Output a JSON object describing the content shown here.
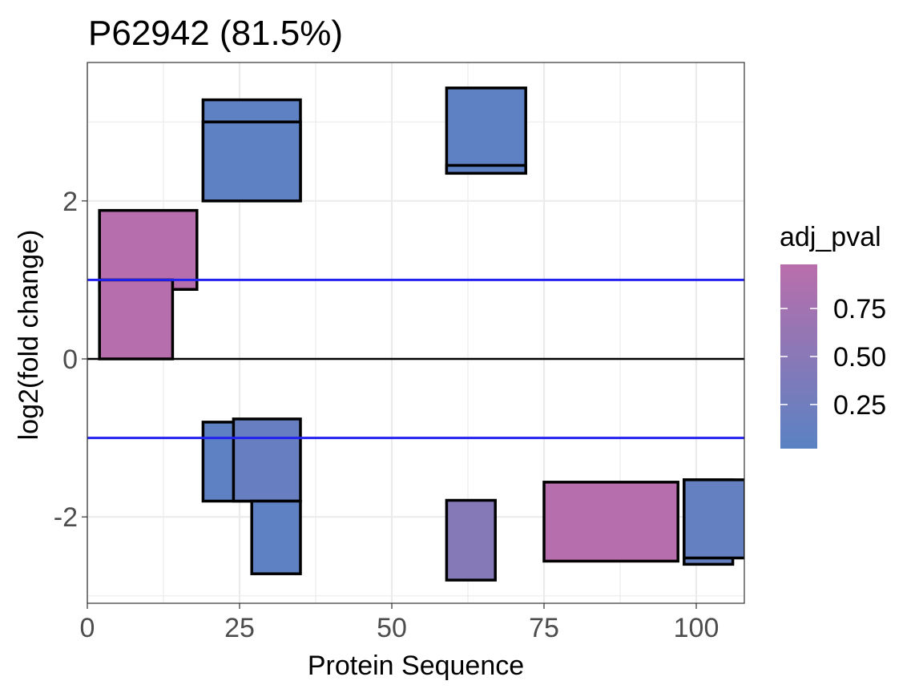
{
  "chart_data": {
    "type": "rect",
    "title": "P62942 (81.5%)",
    "xlabel": "Protein Sequence",
    "ylabel": "log2(fold change)",
    "xlim": [
      0,
      108
    ],
    "ylim": [
      -3.05,
      3.75
    ],
    "x_ticks": [
      0,
      25,
      50,
      75,
      100
    ],
    "x_tick_labels": [
      "0",
      "25",
      "50",
      "75",
      "100"
    ],
    "y_ticks": [
      -2,
      0,
      2
    ],
    "y_tick_labels": [
      "-2",
      "0",
      "2"
    ],
    "grid": true,
    "reference_lines": [
      {
        "y": 1,
        "color": "#2222ee"
      },
      {
        "y": -1,
        "color": "#2222ee"
      },
      {
        "y": 0,
        "color": "#000000"
      }
    ],
    "legend": {
      "title": "adj_pval",
      "position": "right",
      "low_color": "#5a82c3",
      "high_color": "#b96eab",
      "ticks": [
        0.25,
        0.5,
        0.75
      ],
      "tick_labels": [
        "0.25",
        "0.50",
        "0.75"
      ],
      "range": [
        0.02,
        0.98
      ]
    },
    "peptides": [
      {
        "start": 2,
        "end": 18,
        "log2fc": 1.88,
        "baseline": 0.88,
        "adj_pval": 0.96
      },
      {
        "start": 2,
        "end": 14,
        "log2fc": 1.0,
        "baseline": 0,
        "adj_pval": 0.96
      },
      {
        "start": 19,
        "end": 35,
        "log2fc": 3.28,
        "baseline": 2.0,
        "adj_pval": 0.05
      },
      {
        "start": 19,
        "end": 35,
        "log2fc": 3.0,
        "baseline": 2.0,
        "adj_pval": 0.05
      },
      {
        "start": 59,
        "end": 72,
        "log2fc": 3.43,
        "baseline": 2.35,
        "adj_pval": 0.05
      },
      {
        "start": 59,
        "end": 72,
        "log2fc": 2.45,
        "baseline": 2.35,
        "adj_pval": 0.05
      },
      {
        "start": 19,
        "end": 30,
        "log2fc": -0.8,
        "baseline": -1.8,
        "adj_pval": 0.05
      },
      {
        "start": 24,
        "end": 35,
        "log2fc": -0.76,
        "baseline": -1.8,
        "adj_pval": 0.15
      },
      {
        "start": 27,
        "end": 35,
        "log2fc": -1.8,
        "baseline": -2.72,
        "adj_pval": 0.05
      },
      {
        "start": 59,
        "end": 67,
        "log2fc": -1.79,
        "baseline": -2.8,
        "adj_pval": 0.45
      },
      {
        "start": 75,
        "end": 97,
        "log2fc": -1.56,
        "baseline": -2.56,
        "adj_pval": 0.96
      },
      {
        "start": 98,
        "end": 106,
        "log2fc": -1.53,
        "baseline": -2.6,
        "adj_pval": 0.12
      },
      {
        "start": 98,
        "end": 108,
        "log2fc": -1.53,
        "baseline": -2.52,
        "adj_pval": 0.12
      }
    ]
  }
}
